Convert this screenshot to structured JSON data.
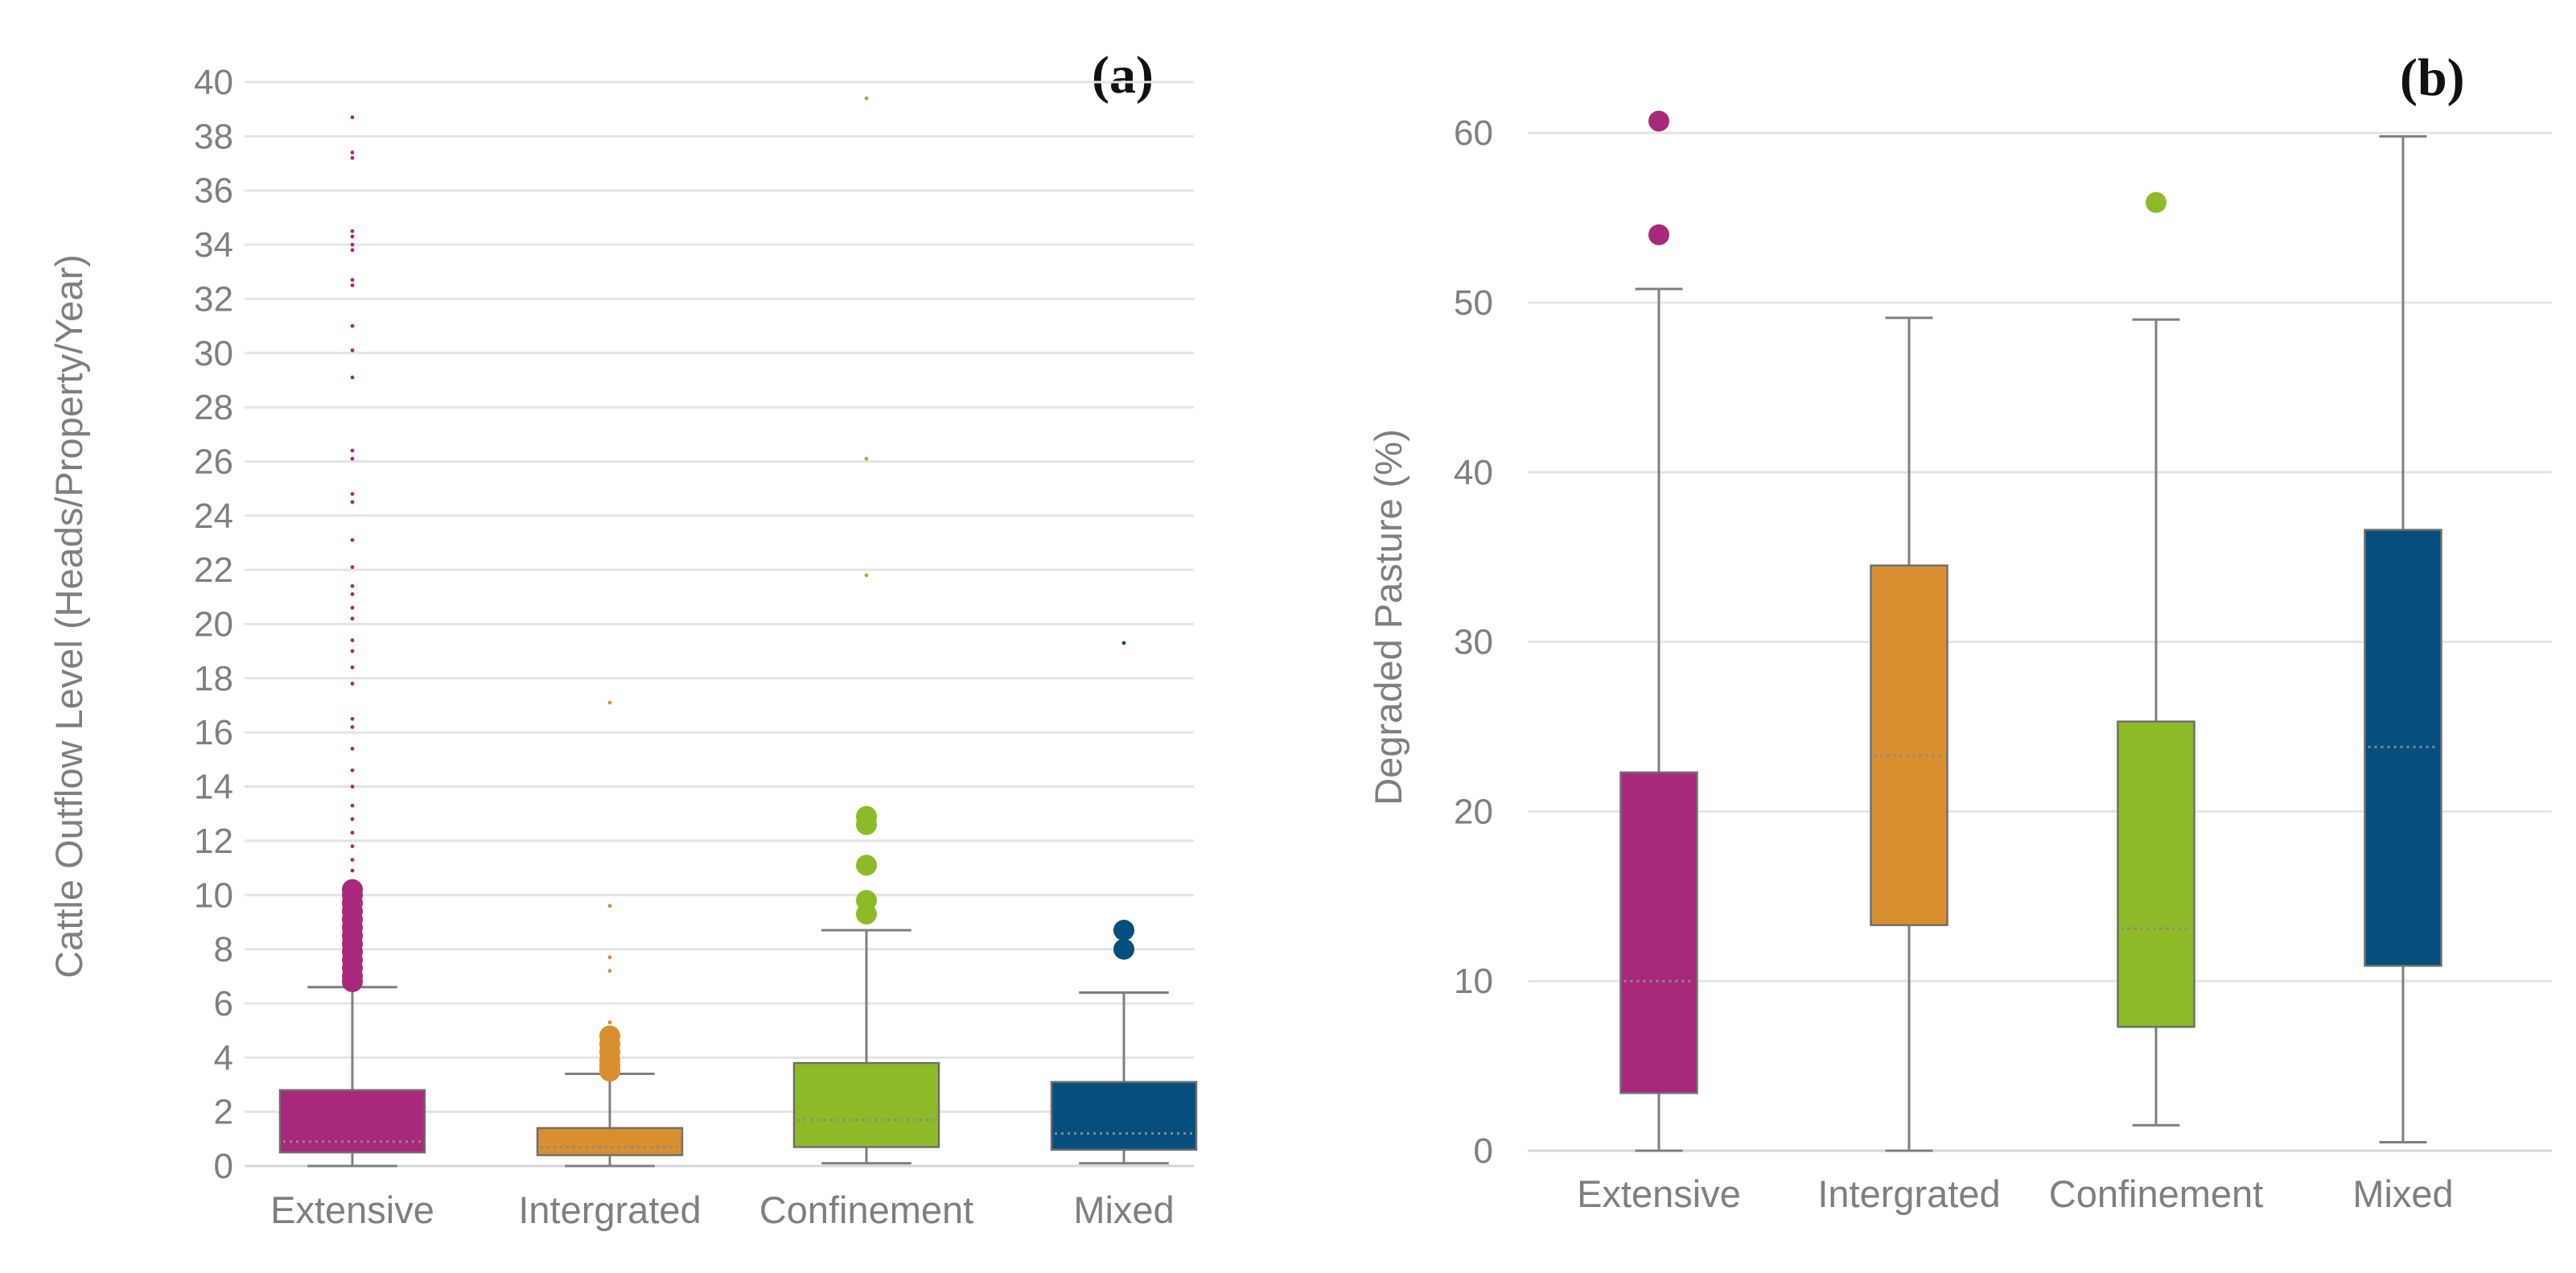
{
  "chart_data": [
    {
      "type": "box",
      "panel_label": "(a)",
      "title": "",
      "xlabel": "",
      "ylabel": "Cattle Outflow Level (Heads/Property/Year)",
      "ylim": [
        0,
        40
      ],
      "y_ticks": [
        "0",
        "2",
        "4",
        "6",
        "8",
        "10",
        "12",
        "14",
        "16",
        "18",
        "20",
        "22",
        "24",
        "26",
        "28",
        "30",
        "32",
        "34",
        "36",
        "38",
        "40"
      ],
      "grid": true,
      "categories": [
        "Extensive",
        "Intergrated",
        "Confinement",
        "Mixed"
      ],
      "colors": [
        "#a8297b",
        "#d98f2f",
        "#8dbb27",
        "#064e7e"
      ],
      "boxes": [
        {
          "whisker_low": 0.0,
          "q1": 0.5,
          "median": 0.9,
          "q3": 2.8,
          "whisker_high": 6.6
        },
        {
          "whisker_low": 0.0,
          "q1": 0.4,
          "median": 0.7,
          "q3": 1.4,
          "whisker_high": 3.4
        },
        {
          "whisker_low": 0.1,
          "q1": 0.7,
          "median": 1.7,
          "q3": 3.8,
          "whisker_high": 8.7
        },
        {
          "whisker_low": 0.1,
          "q1": 0.6,
          "median": 1.2,
          "q3": 3.1,
          "whisker_high": 6.4
        }
      ],
      "outliers_large": [
        [
          6.8,
          7.0,
          7.3,
          7.6,
          7.9,
          8.2,
          8.5,
          8.8,
          9.1,
          9.4,
          9.7,
          10.0,
          10.2
        ],
        [
          3.5,
          3.7,
          3.9,
          4.2,
          4.5,
          4.8
        ],
        [
          9.3,
          9.8,
          11.1,
          12.6,
          12.9
        ],
        [
          8.0,
          8.7
        ]
      ],
      "outliers_small": [
        [
          10.5,
          10.9,
          11.3,
          11.8,
          12.3,
          12.8,
          13.3,
          14.0,
          14.6,
          15.4,
          16.2,
          16.5,
          17.8,
          18.4,
          19.0,
          19.4,
          20.2,
          20.6,
          21.1,
          21.4,
          22.1,
          23.1,
          24.5,
          24.8,
          26.1,
          26.4,
          29.1,
          30.1,
          31.0,
          32.5,
          32.7,
          33.8,
          34.0,
          34.3,
          34.5,
          37.2,
          37.4,
          38.7
        ],
        [
          5.3,
          7.2,
          7.7,
          9.6,
          17.1
        ],
        [
          21.8,
          26.1,
          39.4
        ],
        [
          19.3
        ]
      ]
    },
    {
      "type": "box",
      "panel_label": "(b)",
      "title": "",
      "xlabel": "",
      "ylabel": "Degraded Pasture (%)",
      "ylim": [
        0,
        63
      ],
      "y_ticks": [
        "0",
        "10",
        "20",
        "30",
        "40",
        "50",
        "60"
      ],
      "grid": true,
      "categories": [
        "Extensive",
        "Intergrated",
        "Confinement",
        "Mixed"
      ],
      "colors": [
        "#a8297b",
        "#d98f2f",
        "#8dbb27",
        "#064e7e"
      ],
      "boxes": [
        {
          "whisker_low": 0.0,
          "q1": 3.4,
          "median": 10.0,
          "q3": 22.3,
          "whisker_high": 50.8
        },
        {
          "whisker_low": 0.0,
          "q1": 13.3,
          "median": 23.3,
          "q3": 34.5,
          "whisker_high": 49.1
        },
        {
          "whisker_low": 1.5,
          "q1": 7.3,
          "median": 13.1,
          "q3": 25.3,
          "whisker_high": 49.0
        },
        {
          "whisker_low": 0.5,
          "q1": 10.9,
          "median": 23.8,
          "q3": 36.6,
          "whisker_high": 59.8
        }
      ],
      "outliers_large": [
        [
          54.0,
          60.7
        ],
        [],
        [
          55.9
        ],
        []
      ],
      "outliers_small": [
        [],
        [],
        [],
        []
      ]
    }
  ]
}
